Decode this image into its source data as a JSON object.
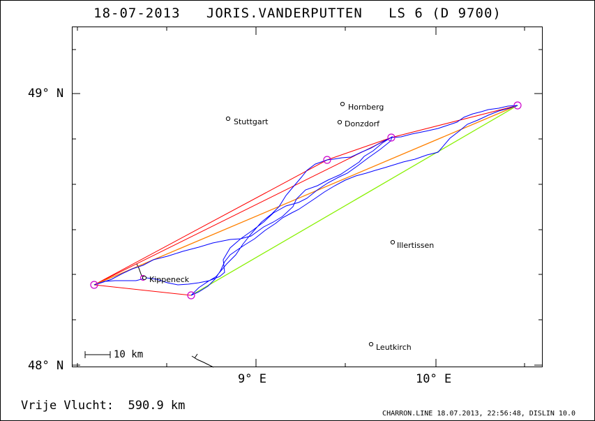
{
  "header": {
    "date": "18-07-2013",
    "pilot": "JORIS.VANDERPUTTEN",
    "glider": "LS 6 (D 9700)"
  },
  "axes": {
    "lat_labels": [
      "49° N",
      "48° N"
    ],
    "lon_labels": [
      "9° E",
      "10° E"
    ]
  },
  "cities": [
    {
      "name": "Hornberg"
    },
    {
      "name": "Stuttgart"
    },
    {
      "name": "Donzdorf"
    },
    {
      "name": "Illertissen"
    },
    {
      "name": "Kippeneck"
    },
    {
      "name": "Leutkirch"
    }
  ],
  "scale": {
    "label": "10 km"
  },
  "footer": {
    "result": "Vrije Vlucht:  590.9 km",
    "credit": "CHARRON.LINE 18.07.2013, 22:56:48, DISLIN 10.0"
  },
  "colors": {
    "track": "#0000ff",
    "task_red": "#ff0000",
    "task_orange": "#ff8000",
    "task_green": "#80ff00",
    "turnpoint": "#cc00cc"
  }
}
